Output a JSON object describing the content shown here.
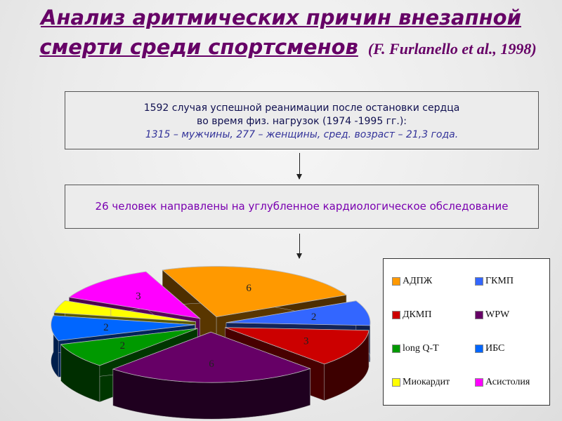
{
  "title": {
    "line1": "Анализ аритмических причин внезапной",
    "line2": "смерти среди спортсменов",
    "citation": "(F. Furlanello et al., 1998)"
  },
  "box1": {
    "line1": "1592 случая успешной реанимации после остановки сердца",
    "line2": "во время физ. нагрузок (1974 -1995 гг.):",
    "line3": "1315 – мужчины, 277 – женщины,    сред. возраст – 21,3 года."
  },
  "box2": {
    "text": "26 человек направлены на углубленное кардиологическое обследование"
  },
  "chart_data": {
    "type": "pie",
    "style": "3d-exploded",
    "categories": [
      "АДПЖ",
      "ГКМП",
      "ДКМП",
      "WPW",
      "long Q-T",
      "ИБС",
      "Миокардит",
      "Асистолия"
    ],
    "values": [
      6,
      2,
      3,
      6,
      2,
      2,
      1,
      3
    ],
    "data_labels": [
      "6",
      "2",
      "3",
      "6",
      "2",
      "2",
      "1",
      "3"
    ],
    "colors": [
      "#ff9900",
      "#3366ff",
      "#cc0000",
      "#660066",
      "#009900",
      "#0066ff",
      "#ffff00",
      "#ff00ff"
    ],
    "legend_placement": "right"
  }
}
